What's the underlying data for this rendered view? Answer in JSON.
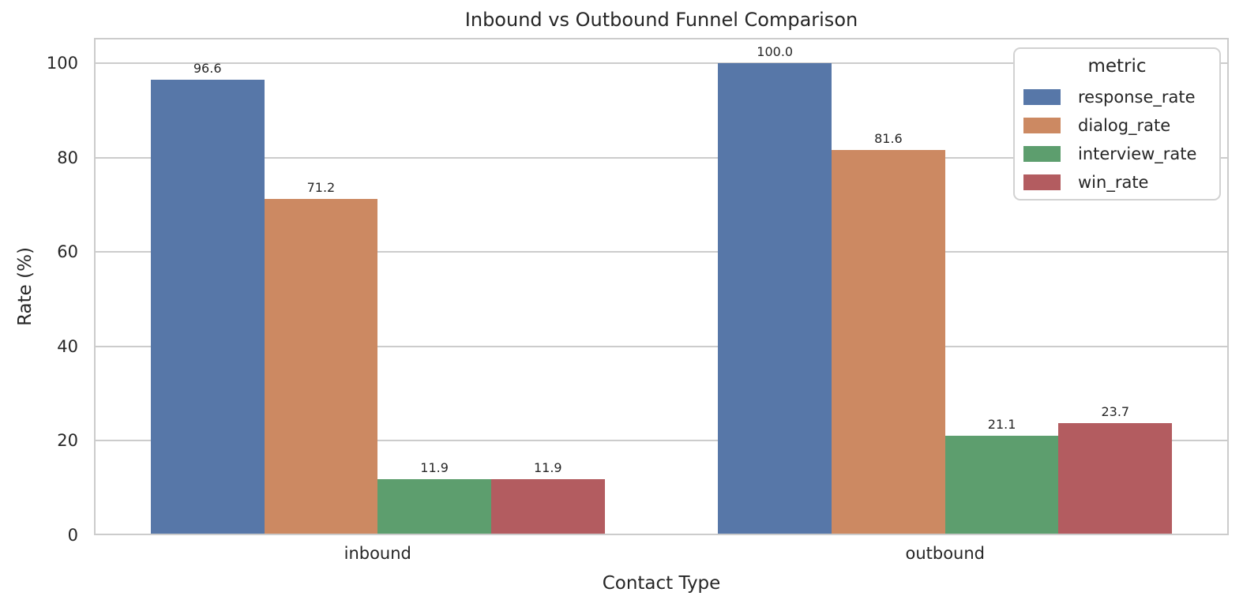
{
  "figure": {
    "background": "#ffffff",
    "text_color": "#262626",
    "grid_color": "#cccccc",
    "spine_color": "#cccccc",
    "legend_border_color": "#d2d2d2",
    "legend_background": "#ffffff"
  },
  "chart_data": {
    "type": "bar",
    "title": "Inbound vs Outbound Funnel Comparison",
    "xlabel": "Contact Type",
    "ylabel": "Rate (%)",
    "categories": [
      "inbound",
      "outbound"
    ],
    "series": [
      {
        "name": "response_rate",
        "color": "#5777a8",
        "values": [
          96.6,
          100.0
        ]
      },
      {
        "name": "dialog_rate",
        "color": "#cc8962",
        "values": [
          71.2,
          81.6
        ]
      },
      {
        "name": "interview_rate",
        "color": "#5d9e6e",
        "values": [
          11.9,
          21.1
        ]
      },
      {
        "name": "win_rate",
        "color": "#b35c60",
        "values": [
          11.9,
          23.7
        ]
      }
    ],
    "bar_value_labels": {
      "inbound": [
        "96.6",
        "71.2",
        "11.9",
        "11.9"
      ],
      "outbound": [
        "100.0",
        "81.6",
        "21.1",
        "23.7"
      ]
    },
    "ylim": [
      0,
      105.4
    ],
    "yticks": [
      0,
      20,
      40,
      60,
      80,
      100
    ],
    "ytick_labels": [
      "0",
      "20",
      "40",
      "60",
      "80",
      "100"
    ],
    "grid": true,
    "legend": {
      "title": "metric",
      "position": "upper right",
      "entries": [
        "response_rate",
        "dialog_rate",
        "interview_rate",
        "win_rate"
      ]
    }
  }
}
